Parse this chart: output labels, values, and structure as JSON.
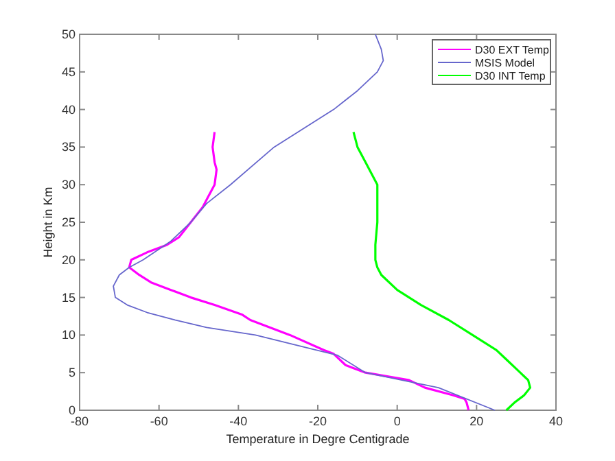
{
  "chart_data": {
    "type": "line",
    "xlabel": "Temperature in Degre Centigrade",
    "ylabel": "Height in Km",
    "xlim": [
      -80,
      40
    ],
    "xticks": [
      -80,
      -60,
      -40,
      -20,
      0,
      20,
      40
    ],
    "ylim": [
      0,
      50
    ],
    "yticks": [
      0,
      5,
      10,
      15,
      20,
      25,
      30,
      35,
      40,
      45,
      50
    ],
    "grid": false,
    "legend": "top right",
    "marker": "none",
    "line_style": "solid",
    "series": [
      {
        "name": "D30 EXT Temp",
        "color": "#ff00ff",
        "x": [
          18,
          17.5,
          17,
          14,
          7,
          3,
          -8,
          -13,
          -16,
          -18.5,
          -27,
          -32,
          -37,
          -39,
          -46,
          -52,
          -57,
          -62,
          -65,
          -67.5,
          -67,
          -63,
          -58,
          -55,
          -52,
          -49,
          -48,
          -46,
          -45.5,
          -46,
          -46.5,
          -46
        ],
        "values": [
          0,
          1,
          1.5,
          2,
          3,
          4,
          5,
          6,
          7.5,
          8,
          10,
          11,
          12,
          12.7,
          14,
          15,
          16,
          17,
          18,
          19,
          20,
          21,
          22,
          23,
          25,
          27,
          28,
          30,
          32,
          33,
          35,
          37
        ]
      },
      {
        "name": "MSIS Model",
        "color": "#6666cc",
        "x": [
          24.6,
          10.4,
          -8,
          -15,
          -35.7,
          -48,
          -56,
          -63,
          -68,
          -71,
          -71.5,
          -70,
          -67.5,
          -64,
          -57,
          -52,
          -48,
          -42,
          -31,
          -16,
          -10,
          -5,
          -3.5,
          -4,
          -5.5
        ],
        "values": [
          0,
          3,
          5,
          7.3,
          10,
          11,
          12,
          13,
          14,
          15,
          16.5,
          18,
          19,
          20,
          22.5,
          25,
          27.5,
          30,
          35,
          40,
          42.5,
          45,
          46.5,
          48,
          50
        ]
      },
      {
        "name": "D30 INT Temp",
        "color": "#00ff00",
        "x": [
          27.5,
          29.5,
          32,
          33.5,
          33,
          31,
          27,
          25,
          19,
          13,
          6,
          0,
          -4,
          -5,
          -5.5,
          -5.5,
          -5,
          -5,
          -5,
          -6,
          -8,
          -10,
          -11
        ],
        "values": [
          0,
          1,
          2,
          3,
          4,
          5,
          7,
          8,
          10,
          12,
          14,
          16,
          18,
          19,
          20,
          22,
          25,
          28,
          30,
          31,
          33,
          35,
          37
        ]
      }
    ]
  }
}
